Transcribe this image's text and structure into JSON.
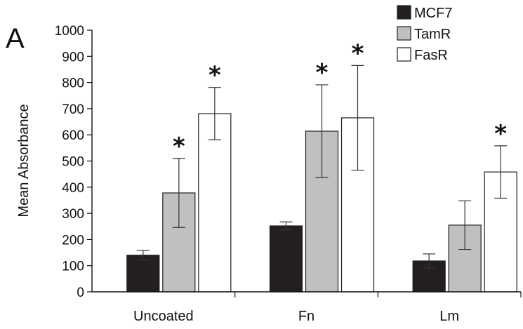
{
  "panel_label": "A",
  "colors": {
    "MCF7": "#231f20",
    "TamR": "#c0c0c0",
    "FasR": "#ffffff",
    "stroke": "#231f20"
  },
  "chart_data": {
    "type": "bar",
    "title": "",
    "xlabel": "",
    "ylabel": "Mean Absorbance",
    "ylim": [
      0,
      1000
    ],
    "yticks": [
      "0",
      "100",
      "200",
      "300",
      "400",
      "500",
      "600",
      "700",
      "800",
      "900",
      "1000"
    ],
    "categories": [
      "Uncoated",
      "Fn",
      "Lm"
    ],
    "legend_position": "top-right",
    "series": [
      {
        "name": "MCF7",
        "values": [
          140,
          252,
          118
        ],
        "errors": [
          18,
          15,
          27
        ],
        "significant": [
          false,
          false,
          false
        ]
      },
      {
        "name": "TamR",
        "values": [
          378,
          614,
          255
        ],
        "errors": [
          132,
          177,
          93
        ],
        "significant": [
          true,
          true,
          false
        ]
      },
      {
        "name": "FasR",
        "values": [
          681,
          665,
          458
        ],
        "errors": [
          100,
          200,
          100
        ],
        "significant": [
          true,
          true,
          true
        ]
      }
    ],
    "significance_symbol": "*"
  }
}
